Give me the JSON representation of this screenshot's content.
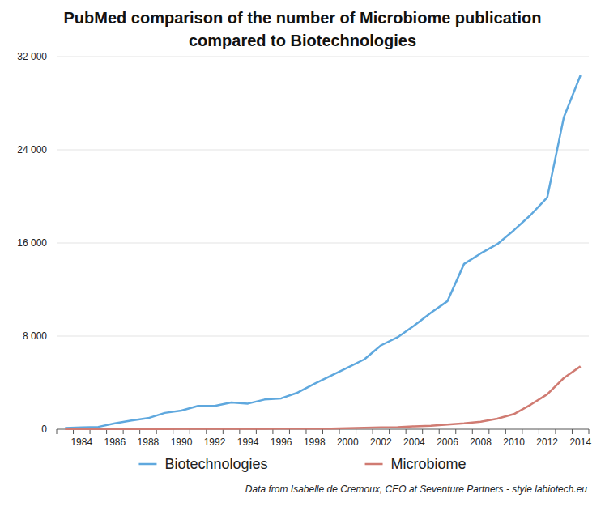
{
  "chart_data": {
    "type": "line",
    "title": "PubMed comparison of the number of Microbiome publication compared to Biotechnologies",
    "annotations": [
      "Data from Isabelle de Cremoux, CEO at Seventure Partners - style labiotech.eu"
    ],
    "categories": [
      null,
      "1984",
      null,
      "1986",
      null,
      "1988",
      null,
      "1990",
      null,
      "1992",
      null,
      "1994",
      null,
      "1996",
      null,
      "1998",
      null,
      "2000",
      null,
      "2002",
      null,
      "2004",
      null,
      "2006",
      null,
      "2008",
      null,
      "2010",
      null,
      "2012",
      null,
      "2014"
    ],
    "series": [
      {
        "name": "Biotechnologies",
        "color": "#5fa8de",
        "values": [
          100,
          150,
          200,
          500,
          750,
          950,
          1400,
          1600,
          2000,
          2000,
          2300,
          2200,
          2550,
          2650,
          3150,
          3900,
          4600,
          5300,
          6000,
          7200,
          7900,
          8900,
          10000,
          11000,
          14200,
          15100,
          15900,
          17100,
          18400,
          19900,
          26800,
          30400
        ]
      },
      {
        "name": "Microbiome",
        "color": "#d07b72",
        "values": [
          10,
          10,
          15,
          15,
          20,
          20,
          25,
          30,
          30,
          30,
          35,
          40,
          40,
          45,
          50,
          55,
          60,
          80,
          120,
          150,
          180,
          250,
          300,
          400,
          500,
          650,
          900,
          1300,
          2100,
          3000,
          4400,
          5400
        ]
      }
    ],
    "ylim": [
      0,
      32000
    ],
    "yticks": [
      0,
      {
        "value": 8000,
        "label": "8 000"
      },
      {
        "value": 16000,
        "label": "16 000"
      },
      {
        "value": 24000,
        "label": "24 000"
      },
      {
        "value": 32000,
        "label": "32 000"
      }
    ],
    "grid": true,
    "legend": "bottom"
  }
}
